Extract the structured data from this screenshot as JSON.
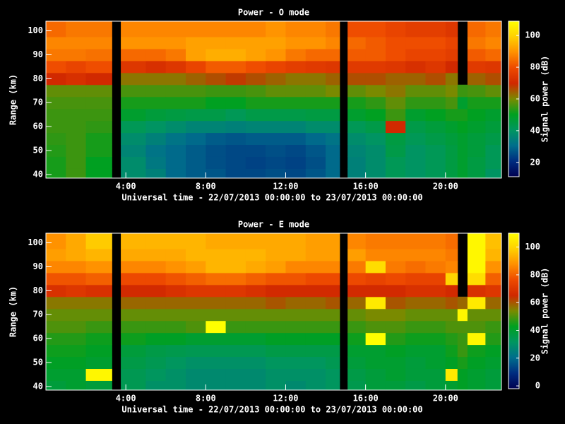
{
  "chart_data": [
    {
      "type": "heatmap",
      "title": "Power - O mode",
      "xlabel": "Universal time - 22/07/2013 00:00:00 to 23/07/2013 00:00:00",
      "ylabel": "Range (km)",
      "colorbar_label": "Signal power (dB)",
      "x_edges": [
        0,
        1,
        2,
        3.3,
        3.75,
        5,
        6,
        7,
        8,
        9,
        10,
        11,
        12,
        13,
        14,
        14.7,
        15.1,
        16,
        17,
        18,
        19,
        20,
        20.6,
        21.1,
        22,
        22.8
      ],
      "y_edges": [
        38.5,
        42.5,
        47.5,
        52.5,
        57.5,
        62.5,
        67.5,
        72.5,
        77.5,
        82.5,
        87.5,
        92.5,
        97.5,
        104
      ],
      "z": [
        [
          52,
          55,
          50,
          null,
          38,
          35,
          30,
          28,
          27,
          25,
          25,
          26,
          25,
          27,
          30,
          null,
          35,
          38,
          42,
          40,
          42,
          45,
          48,
          45,
          40
        ],
        [
          52,
          55,
          50,
          null,
          38,
          33,
          30,
          28,
          26,
          25,
          24,
          25,
          24,
          26,
          30,
          null,
          35,
          38,
          42,
          40,
          42,
          45,
          48,
          45,
          42
        ],
        [
          53,
          55,
          52,
          null,
          36,
          32,
          30,
          28,
          26,
          25,
          25,
          26,
          25,
          27,
          30,
          null,
          36,
          38,
          44,
          40,
          42,
          45,
          48,
          46,
          42
        ],
        [
          54,
          55,
          52,
          null,
          38,
          35,
          32,
          30,
          28,
          27,
          28,
          28,
          28,
          30,
          32,
          null,
          38,
          40,
          45,
          42,
          44,
          46,
          48,
          46,
          44
        ],
        [
          55,
          55,
          54,
          null,
          42,
          40,
          38,
          36,
          36,
          35,
          36,
          36,
          36,
          38,
          38,
          null,
          42,
          44,
          70,
          44,
          46,
          48,
          50,
          48,
          46
        ],
        [
          55,
          55,
          55,
          null,
          48,
          46,
          45,
          44,
          44,
          42,
          44,
          44,
          44,
          45,
          45,
          null,
          48,
          50,
          55,
          48,
          50,
          52,
          52,
          50,
          48
        ],
        [
          56,
          56,
          56,
          null,
          52,
          52,
          52,
          52,
          50,
          50,
          52,
          52,
          52,
          52,
          52,
          null,
          52,
          54,
          58,
          54,
          54,
          56,
          48,
          52,
          52
        ],
        [
          58,
          58,
          58,
          null,
          56,
          56,
          56,
          56,
          55,
          55,
          56,
          58,
          58,
          58,
          60,
          null,
          58,
          60,
          62,
          58,
          58,
          60,
          55,
          56,
          58
        ],
        [
          70,
          72,
          70,
          null,
          62,
          62,
          62,
          64,
          66,
          68,
          66,
          64,
          62,
          62,
          64,
          null,
          66,
          66,
          64,
          64,
          66,
          62,
          null,
          64,
          66
        ],
        [
          80,
          78,
          80,
          null,
          74,
          72,
          74,
          78,
          82,
          82,
          80,
          78,
          76,
          75,
          74,
          null,
          75,
          75,
          74,
          72,
          74,
          70,
          null,
          75,
          74
        ],
        [
          86,
          86,
          85,
          null,
          84,
          84,
          86,
          92,
          94,
          94,
          92,
          90,
          86,
          84,
          84,
          null,
          82,
          82,
          80,
          78,
          78,
          76,
          null,
          82,
          84
        ],
        [
          88,
          88,
          88,
          null,
          90,
          90,
          90,
          92,
          92,
          92,
          92,
          92,
          90,
          90,
          88,
          null,
          84,
          82,
          80,
          80,
          80,
          78,
          null,
          86,
          88
        ],
        [
          84,
          86,
          86,
          null,
          88,
          88,
          88,
          88,
          88,
          88,
          88,
          90,
          88,
          88,
          86,
          null,
          80,
          80,
          78,
          76,
          76,
          74,
          null,
          84,
          86
        ]
      ],
      "xlim": [
        0,
        22.8
      ],
      "ylim": [
        38.5,
        104
      ],
      "zlim": [
        11,
        109
      ],
      "xticks": [
        {
          "value": 4,
          "label": "4:00"
        },
        {
          "value": 8,
          "label": "8:00"
        },
        {
          "value": 12,
          "label": "12:00"
        },
        {
          "value": 16,
          "label": "16:00"
        },
        {
          "value": 20,
          "label": "20:00"
        }
      ],
      "yticks": [
        40,
        50,
        60,
        70,
        80,
        90,
        100
      ],
      "zticks": [
        20,
        40,
        60,
        80,
        100
      ],
      "colorscale": [
        "#000050",
        "#002c80",
        "#006e8c",
        "#009660",
        "#00a020",
        "#7a8a00",
        "#d02800",
        "#ee4a00",
        "#ff9000",
        "#ffd000",
        "#ffff00"
      ]
    },
    {
      "type": "heatmap",
      "title": "Power - E mode",
      "xlabel": "Universal time - 22/07/2013 00:00:00 to 23/07/2013 00:00:00",
      "ylabel": "Range (km)",
      "colorbar_label": "Signal power (dB)",
      "x_edges": [
        0,
        1,
        2,
        3.3,
        3.75,
        5,
        6,
        7,
        8,
        9,
        10,
        11,
        12,
        13,
        14,
        14.7,
        15.1,
        16,
        17,
        18,
        19,
        20,
        20.6,
        21.1,
        22,
        22.8
      ],
      "y_edges": [
        38.5,
        42.5,
        47.5,
        52.5,
        57.5,
        62.5,
        67.5,
        72.5,
        77.5,
        82.5,
        87.5,
        92.5,
        97.5,
        104
      ],
      "z": [
        [
          38,
          40,
          38,
          null,
          34,
          30,
          30,
          28,
          28,
          28,
          28,
          30,
          28,
          30,
          32,
          null,
          35,
          38,
          38,
          36,
          38,
          40,
          42,
          40,
          38
        ],
        [
          40,
          40,
          108,
          null,
          34,
          32,
          30,
          28,
          28,
          28,
          28,
          30,
          30,
          30,
          32,
          null,
          36,
          38,
          40,
          38,
          38,
          105,
          42,
          40,
          38
        ],
        [
          42,
          42,
          40,
          null,
          36,
          34,
          32,
          30,
          30,
          30,
          30,
          32,
          32,
          32,
          34,
          null,
          38,
          40,
          40,
          38,
          40,
          42,
          45,
          42,
          40
        ],
        [
          44,
          44,
          42,
          null,
          38,
          36,
          35,
          34,
          34,
          34,
          34,
          36,
          36,
          36,
          36,
          null,
          40,
          40,
          42,
          40,
          40,
          44,
          48,
          44,
          42
        ],
        [
          46,
          46,
          44,
          null,
          44,
          42,
          42,
          40,
          40,
          40,
          40,
          42,
          42,
          42,
          42,
          null,
          44,
          110,
          46,
          44,
          44,
          46,
          48,
          108,
          46
        ],
        [
          50,
          50,
          48,
          null,
          48,
          48,
          48,
          50,
          110,
          48,
          48,
          48,
          48,
          48,
          48,
          null,
          48,
          50,
          50,
          48,
          48,
          50,
          50,
          50,
          48
        ],
        [
          52,
          52,
          52,
          null,
          52,
          52,
          52,
          52,
          52,
          52,
          52,
          52,
          52,
          52,
          52,
          null,
          52,
          54,
          54,
          52,
          52,
          52,
          108,
          52,
          52
        ],
        [
          56,
          56,
          56,
          null,
          58,
          58,
          58,
          58,
          58,
          58,
          58,
          60,
          58,
          58,
          60,
          null,
          58,
          105,
          60,
          58,
          58,
          60,
          58,
          105,
          58
        ],
        [
          68,
          70,
          68,
          null,
          66,
          66,
          68,
          70,
          70,
          70,
          68,
          66,
          66,
          66,
          66,
          null,
          66,
          66,
          66,
          68,
          68,
          66,
          null,
          68,
          70
        ],
        [
          78,
          78,
          80,
          null,
          76,
          76,
          78,
          80,
          82,
          82,
          80,
          78,
          78,
          76,
          76,
          null,
          76,
          74,
          76,
          74,
          74,
          100,
          null,
          102,
          80
        ],
        [
          86,
          86,
          88,
          null,
          86,
          86,
          88,
          90,
          94,
          94,
          92,
          90,
          86,
          86,
          86,
          null,
          84,
          102,
          84,
          82,
          84,
          86,
          null,
          108,
          88
        ],
        [
          90,
          92,
          94,
          null,
          92,
          92,
          92,
          94,
          94,
          94,
          94,
          92,
          92,
          90,
          90,
          null,
          90,
          86,
          86,
          86,
          86,
          84,
          null,
          108,
          94
        ],
        [
          88,
          92,
          98,
          null,
          94,
          94,
          94,
          94,
          92,
          92,
          92,
          92,
          92,
          90,
          90,
          null,
          86,
          84,
          84,
          84,
          84,
          82,
          null,
          108,
          96
        ]
      ],
      "xlim": [
        0,
        22.8
      ],
      "ylim": [
        38.5,
        104
      ],
      "zlim": [
        -2,
        110
      ],
      "xticks": [
        {
          "value": 4,
          "label": "4:00"
        },
        {
          "value": 8,
          "label": "8:00"
        },
        {
          "value": 12,
          "label": "12:00"
        },
        {
          "value": 16,
          "label": "16:00"
        },
        {
          "value": 20,
          "label": "20:00"
        }
      ],
      "yticks": [
        40,
        50,
        60,
        70,
        80,
        90,
        100
      ],
      "zticks": [
        0,
        20,
        40,
        60,
        80,
        100
      ],
      "colorscale": [
        "#000050",
        "#002c80",
        "#006e8c",
        "#009660",
        "#00a020",
        "#7a8a00",
        "#d02800",
        "#ee4a00",
        "#ff9000",
        "#ffd000",
        "#ffff00"
      ]
    }
  ]
}
